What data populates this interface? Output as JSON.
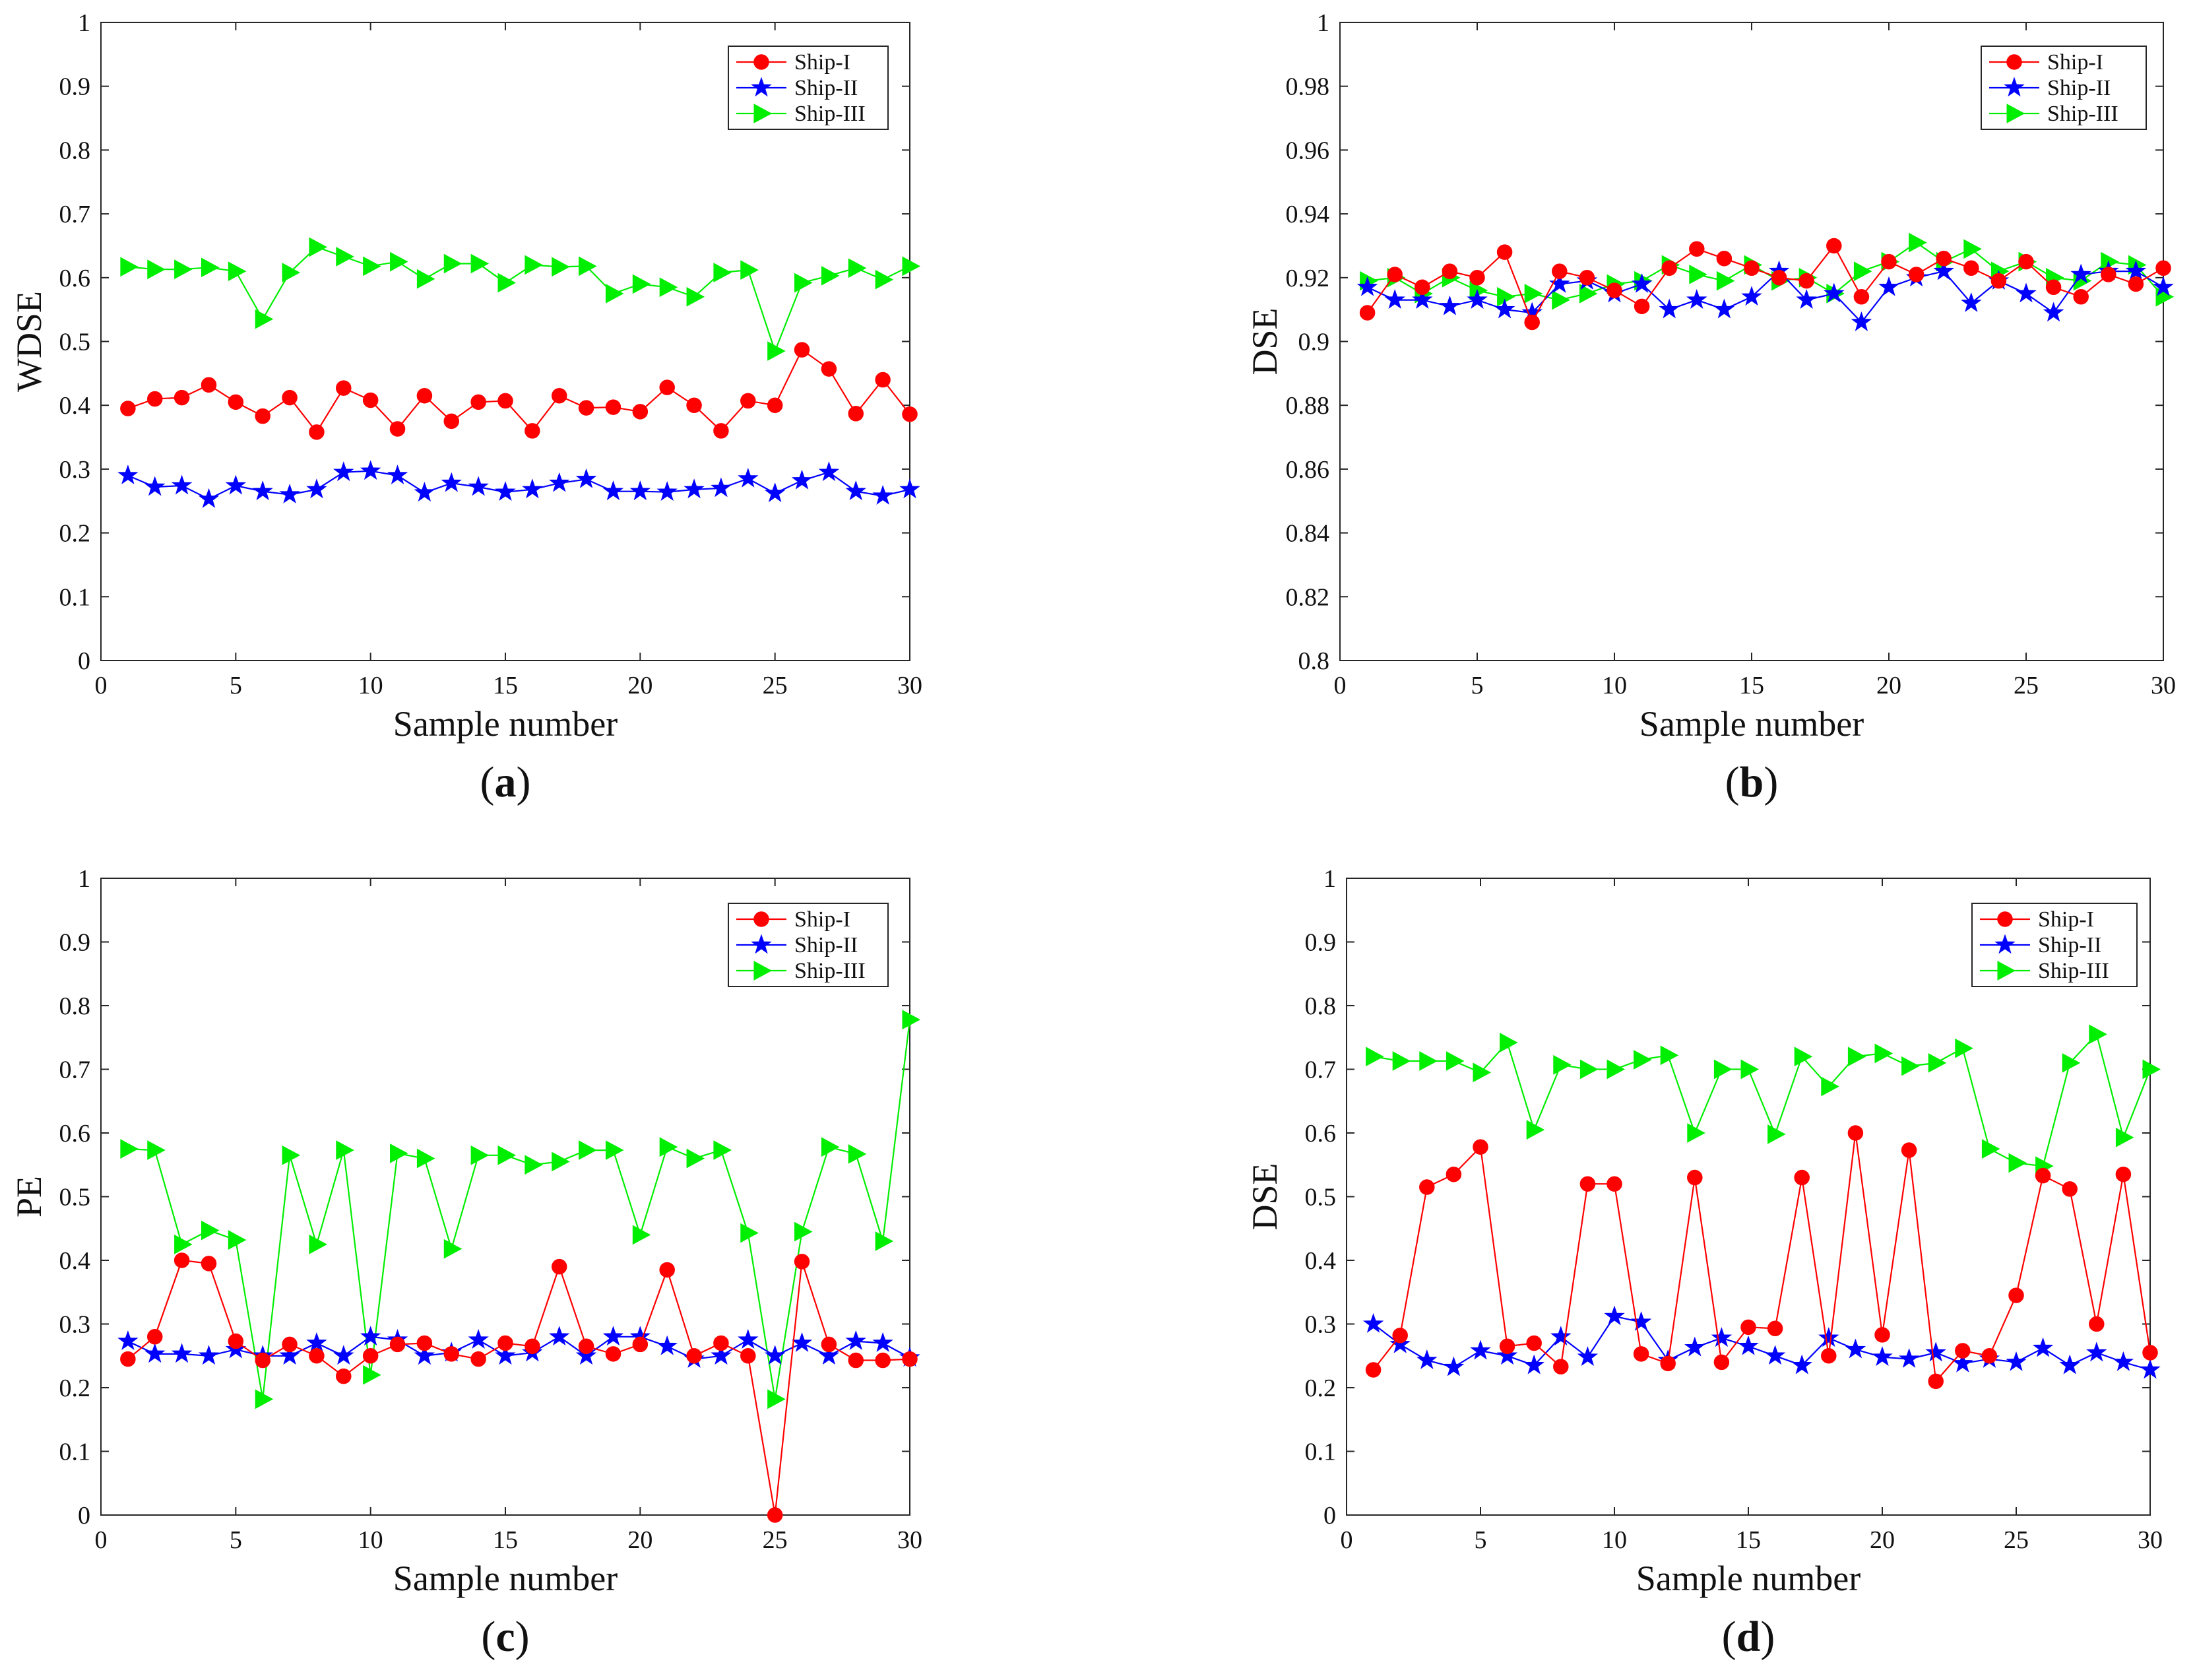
{
  "colors": {
    "ship1": "#ff0000",
    "ship2": "#0000ff",
    "ship3": "#00ee00",
    "axis": "#262626"
  },
  "chart_data": [
    {
      "type": "line",
      "panel": "a",
      "panel_label": "a",
      "xlabel": "Sample number",
      "ylabel": "WDSE",
      "xlim": [
        0,
        30
      ],
      "ylim": [
        0,
        1
      ],
      "xticks": [
        0,
        5,
        10,
        15,
        20,
        25,
        30
      ],
      "yticks": [
        0,
        0.1,
        0.2,
        0.3,
        0.4,
        0.5,
        0.6,
        0.7,
        0.8,
        0.9,
        1
      ],
      "ytick_labels": [
        "0",
        "0.1",
        "0.2",
        "0.3",
        "0.4",
        "0.5",
        "0.6",
        "0.7",
        "0.8",
        "0.9",
        "1"
      ],
      "legend_position": "top-right",
      "x": [
        1,
        2,
        3,
        4,
        5,
        6,
        7,
        8,
        9,
        10,
        11,
        12,
        13,
        14,
        15,
        16,
        17,
        18,
        19,
        20,
        21,
        22,
        23,
        24,
        25,
        26,
        27,
        28,
        29,
        30
      ],
      "series": [
        {
          "name": "Ship-I",
          "marker": "circle",
          "color_key": "ship1",
          "values": [
            0.395,
            0.41,
            0.412,
            0.432,
            0.405,
            0.383,
            0.412,
            0.358,
            0.427,
            0.408,
            0.363,
            0.415,
            0.375,
            0.405,
            0.407,
            0.36,
            0.415,
            0.396,
            0.397,
            0.39,
            0.428,
            0.4,
            0.36,
            0.407,
            0.4,
            0.487,
            0.457,
            0.387,
            0.44,
            0.386
          ]
        },
        {
          "name": "Ship-II",
          "marker": "star",
          "color_key": "ship2",
          "values": [
            0.29,
            0.272,
            0.274,
            0.253,
            0.274,
            0.265,
            0.26,
            0.268,
            0.295,
            0.297,
            0.29,
            0.263,
            0.278,
            0.272,
            0.264,
            0.268,
            0.278,
            0.284,
            0.265,
            0.265,
            0.264,
            0.268,
            0.27,
            0.285,
            0.262,
            0.282,
            0.295,
            0.265,
            0.258,
            0.268
          ]
        },
        {
          "name": "Ship-III",
          "marker": "triangle-right",
          "color_key": "ship3",
          "values": [
            0.617,
            0.613,
            0.613,
            0.616,
            0.61,
            0.535,
            0.608,
            0.648,
            0.633,
            0.618,
            0.625,
            0.598,
            0.622,
            0.622,
            0.592,
            0.62,
            0.617,
            0.618,
            0.575,
            0.59,
            0.585,
            0.57,
            0.608,
            0.612,
            0.485,
            0.592,
            0.603,
            0.615,
            0.597,
            0.618
          ]
        }
      ]
    },
    {
      "type": "line",
      "panel": "b",
      "panel_label": "b",
      "xlabel": "Sample number",
      "ylabel": "DSE",
      "xlim": [
        0,
        30
      ],
      "ylim": [
        0.8,
        1
      ],
      "xticks": [
        0,
        5,
        10,
        15,
        20,
        25,
        30
      ],
      "yticks": [
        0.8,
        0.82,
        0.84,
        0.86,
        0.88,
        0.9,
        0.92,
        0.94,
        0.96,
        0.98,
        1
      ],
      "ytick_labels": [
        "0.8",
        "0.82",
        "0.84",
        "0.86",
        "0.88",
        "0.9",
        "0.92",
        "0.94",
        "0.96",
        "0.98",
        "1"
      ],
      "legend_position": "top-right",
      "x": [
        1,
        2,
        3,
        4,
        5,
        6,
        7,
        8,
        9,
        10,
        11,
        12,
        13,
        14,
        15,
        16,
        17,
        18,
        19,
        20,
        21,
        22,
        23,
        24,
        25,
        26,
        27,
        28,
        29,
        30
      ],
      "series": [
        {
          "name": "Ship-I",
          "marker": "circle",
          "color_key": "ship1",
          "values": [
            0.909,
            0.921,
            0.917,
            0.922,
            0.92,
            0.928,
            0.906,
            0.922,
            0.92,
            0.916,
            0.911,
            0.923,
            0.929,
            0.926,
            0.923,
            0.92,
            0.919,
            0.93,
            0.914,
            0.925,
            0.921,
            0.926,
            0.923,
            0.919,
            0.925,
            0.917,
            0.914,
            0.921,
            0.918,
            0.923
          ]
        },
        {
          "name": "Ship-II",
          "marker": "star",
          "color_key": "ship2",
          "values": [
            0.917,
            0.913,
            0.913,
            0.911,
            0.913,
            0.91,
            0.909,
            0.918,
            0.919,
            0.915,
            0.918,
            0.91,
            0.913,
            0.91,
            0.914,
            0.922,
            0.913,
            0.915,
            0.906,
            0.917,
            0.92,
            0.922,
            0.912,
            0.919,
            0.915,
            0.909,
            0.921,
            0.922,
            0.922,
            0.917
          ]
        },
        {
          "name": "Ship-III",
          "marker": "triangle-right",
          "color_key": "ship3",
          "values": [
            0.919,
            0.92,
            0.915,
            0.92,
            0.916,
            0.914,
            0.915,
            0.913,
            0.915,
            0.918,
            0.919,
            0.924,
            0.921,
            0.919,
            0.924,
            0.919,
            0.92,
            0.915,
            0.922,
            0.925,
            0.931,
            0.925,
            0.929,
            0.922,
            0.925,
            0.92,
            0.919,
            0.925,
            0.924,
            0.914
          ]
        }
      ]
    },
    {
      "type": "line",
      "panel": "c",
      "panel_label": "c",
      "xlabel": "Sample number",
      "ylabel": "PE",
      "xlim": [
        0,
        30
      ],
      "ylim": [
        0,
        1
      ],
      "xticks": [
        0,
        5,
        10,
        15,
        20,
        25,
        30
      ],
      "yticks": [
        0,
        0.1,
        0.2,
        0.3,
        0.4,
        0.5,
        0.6,
        0.7,
        0.8,
        0.9,
        1
      ],
      "ytick_labels": [
        "0",
        "0.1",
        "0.2",
        "0.3",
        "0.4",
        "0.5",
        "0.6",
        "0.7",
        "0.8",
        "0.9",
        "1"
      ],
      "legend_position": "top-right",
      "x": [
        1,
        2,
        3,
        4,
        5,
        6,
        7,
        8,
        9,
        10,
        11,
        12,
        13,
        14,
        15,
        16,
        17,
        18,
        19,
        20,
        21,
        22,
        23,
        24,
        25,
        26,
        27,
        28,
        29,
        30
      ],
      "series": [
        {
          "name": "Ship-I",
          "marker": "circle",
          "color_key": "ship1",
          "values": [
            0.245,
            0.28,
            0.4,
            0.395,
            0.273,
            0.243,
            0.268,
            0.25,
            0.218,
            0.25,
            0.268,
            0.27,
            0.253,
            0.245,
            0.27,
            0.265,
            0.39,
            0.265,
            0.253,
            0.268,
            0.385,
            0.25,
            0.27,
            0.25,
            0.0,
            0.398,
            0.268,
            0.243,
            0.243,
            0.245
          ]
        },
        {
          "name": "Ship-II",
          "marker": "star",
          "color_key": "ship2",
          "values": [
            0.273,
            0.253,
            0.253,
            0.25,
            0.26,
            0.25,
            0.25,
            0.27,
            0.25,
            0.28,
            0.275,
            0.25,
            0.255,
            0.275,
            0.25,
            0.255,
            0.28,
            0.25,
            0.28,
            0.28,
            0.265,
            0.245,
            0.25,
            0.275,
            0.25,
            0.27,
            0.25,
            0.273,
            0.27,
            0.247
          ]
        },
        {
          "name": "Ship-III",
          "marker": "triangle-right",
          "color_key": "ship3",
          "values": [
            0.575,
            0.573,
            0.425,
            0.447,
            0.432,
            0.182,
            0.565,
            0.425,
            0.573,
            0.22,
            0.568,
            0.56,
            0.418,
            0.565,
            0.565,
            0.55,
            0.555,
            0.573,
            0.573,
            0.44,
            0.578,
            0.56,
            0.573,
            0.443,
            0.182,
            0.445,
            0.578,
            0.567,
            0.43,
            0.778
          ]
        }
      ]
    },
    {
      "type": "line",
      "panel": "d",
      "panel_label": "d",
      "xlabel": "Sample number",
      "ylabel": "DSE",
      "xlim": [
        0,
        30
      ],
      "ylim": [
        0,
        1
      ],
      "xticks": [
        0,
        5,
        10,
        15,
        20,
        25,
        30
      ],
      "yticks": [
        0,
        0.1,
        0.2,
        0.3,
        0.4,
        0.5,
        0.6,
        0.7,
        0.8,
        0.9,
        1
      ],
      "ytick_labels": [
        "0",
        "0.1",
        "0.2",
        "0.3",
        "0.4",
        "0.5",
        "0.6",
        "0.7",
        "0.8",
        "0.9",
        "1"
      ],
      "legend_position": "top-right",
      "x": [
        1,
        2,
        3,
        4,
        5,
        6,
        7,
        8,
        9,
        10,
        11,
        12,
        13,
        14,
        15,
        16,
        17,
        18,
        19,
        20,
        21,
        22,
        23,
        24,
        25,
        26,
        27,
        28,
        29,
        30
      ],
      "series": [
        {
          "name": "Ship-I",
          "marker": "circle",
          "color_key": "ship1",
          "values": [
            0.228,
            0.282,
            0.515,
            0.535,
            0.578,
            0.265,
            0.27,
            0.233,
            0.52,
            0.52,
            0.253,
            0.238,
            0.53,
            0.24,
            0.295,
            0.293,
            0.53,
            0.25,
            0.6,
            0.283,
            0.573,
            0.21,
            0.258,
            0.25,
            0.345,
            0.533,
            0.512,
            0.3,
            0.535,
            0.255
          ]
        },
        {
          "name": "Ship-II",
          "marker": "star",
          "color_key": "ship2",
          "values": [
            0.3,
            0.268,
            0.243,
            0.232,
            0.258,
            0.25,
            0.235,
            0.28,
            0.248,
            0.312,
            0.303,
            0.243,
            0.263,
            0.278,
            0.265,
            0.25,
            0.235,
            0.278,
            0.26,
            0.248,
            0.245,
            0.255,
            0.238,
            0.245,
            0.24,
            0.262,
            0.235,
            0.255,
            0.24,
            0.228
          ]
        },
        {
          "name": "Ship-III",
          "marker": "triangle-right",
          "color_key": "ship3",
          "values": [
            0.72,
            0.713,
            0.713,
            0.713,
            0.695,
            0.742,
            0.605,
            0.707,
            0.7,
            0.7,
            0.715,
            0.722,
            0.6,
            0.7,
            0.7,
            0.598,
            0.72,
            0.673,
            0.72,
            0.725,
            0.705,
            0.71,
            0.733,
            0.575,
            0.553,
            0.548,
            0.71,
            0.755,
            0.593,
            0.7
          ]
        }
      ]
    }
  ]
}
